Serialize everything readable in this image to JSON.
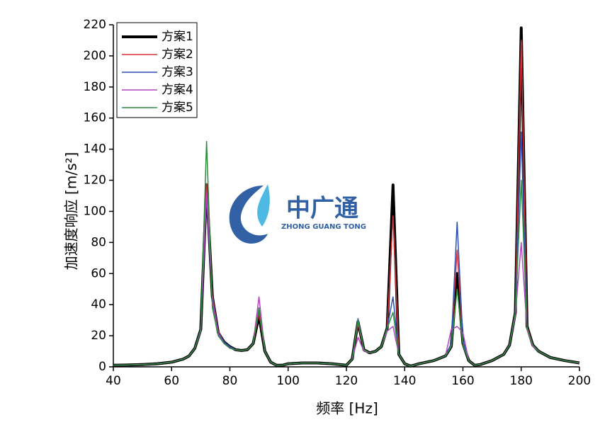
{
  "chart_data": {
    "type": "line",
    "x_label": "频率 [Hz]",
    "y_label": "加速度响应 [m/s²]",
    "watermark": {
      "brand": "中广通",
      "subtitle": "ZHONG GUANG TONG"
    },
    "xlim": [
      40,
      200
    ],
    "xticks": [
      40,
      60,
      80,
      100,
      120,
      140,
      160,
      180,
      200
    ],
    "ylim": [
      0,
      220
    ],
    "yticks": [
      0,
      20,
      40,
      60,
      80,
      100,
      120,
      140,
      160,
      180,
      200,
      220
    ],
    "legend": "upper-left",
    "x": [
      40,
      45,
      50,
      55,
      60,
      64,
      66,
      68,
      70,
      72,
      74,
      76,
      78,
      80,
      82,
      84,
      86,
      88,
      90,
      92,
      94,
      96,
      98,
      100,
      105,
      110,
      115,
      120,
      122,
      124,
      126,
      128,
      130,
      132,
      134,
      136,
      138,
      140,
      142,
      145,
      150,
      154,
      156,
      158,
      160,
      162,
      164,
      166,
      170,
      174,
      176,
      178,
      180,
      182,
      184,
      186,
      190,
      195,
      200
    ],
    "series": [
      {
        "name": "方案1",
        "color": "#000000",
        "width": 4,
        "values": [
          1,
          1.2,
          1.5,
          2,
          3,
          5,
          7,
          12,
          24,
          117,
          45,
          22,
          16,
          13,
          11,
          10.5,
          11,
          15,
          33,
          10,
          3,
          1,
          1,
          2,
          2.5,
          2.5,
          2,
          1,
          5,
          29,
          11,
          9,
          10,
          13,
          25,
          117,
          8,
          2,
          0.5,
          2,
          4,
          7,
          13,
          60,
          15,
          4,
          1,
          1.5,
          4,
          8,
          14,
          35,
          218,
          26,
          14,
          10,
          6,
          4,
          2.5
        ]
      },
      {
        "name": "方案2",
        "color": "#d8323c",
        "width": 1.5,
        "values": [
          1,
          1.2,
          1.5,
          2,
          3,
          5,
          7,
          12,
          24,
          118,
          46,
          23,
          16,
          13,
          11,
          10.5,
          11,
          15,
          35,
          10,
          3,
          1,
          1,
          2,
          2.5,
          2.5,
          2,
          1,
          5,
          28,
          11,
          9,
          10,
          13,
          25,
          97,
          8,
          2,
          0.5,
          2,
          4,
          7,
          14,
          75,
          16,
          4,
          1,
          1.5,
          4,
          8,
          14,
          35,
          210,
          26,
          14,
          10,
          6,
          4,
          2.5
        ]
      },
      {
        "name": "方案3",
        "color": "#2c4fb2",
        "width": 1.5,
        "values": [
          1,
          1.2,
          1.5,
          2,
          3,
          5,
          7,
          12,
          24,
          110,
          44,
          22,
          16,
          13,
          11,
          10.5,
          11,
          15,
          38,
          10,
          3,
          1,
          1,
          2,
          2.5,
          2.5,
          2,
          1,
          5,
          31,
          11,
          9,
          10,
          13,
          25,
          45,
          8,
          2,
          0.5,
          2,
          4,
          7,
          15,
          93,
          17,
          4,
          1,
          1.5,
          4,
          8,
          14,
          35,
          151,
          25,
          14,
          10,
          6,
          4,
          2.5
        ]
      },
      {
        "name": "方案4",
        "color": "#b445c0",
        "width": 1.5,
        "values": [
          1,
          1.2,
          1.5,
          2,
          3,
          5,
          7,
          12,
          23,
          113,
          42,
          21,
          15,
          12,
          11,
          10.5,
          11,
          15,
          45,
          10,
          3,
          1,
          1,
          2,
          2.5,
          2.5,
          2,
          1,
          5,
          19,
          10,
          9,
          10,
          13,
          23,
          26,
          8,
          2,
          0.5,
          2,
          4,
          7,
          24,
          26,
          22,
          4,
          1,
          1.5,
          4,
          8,
          14,
          33,
          80,
          24,
          13,
          10,
          6,
          4,
          2.5
        ]
      },
      {
        "name": "方案5",
        "color": "#2e8c3e",
        "width": 1.5,
        "values": [
          1,
          1.2,
          1.5,
          2,
          3,
          5,
          7,
          12,
          24,
          145,
          38,
          20,
          15,
          12,
          11,
          10.5,
          11,
          15,
          38,
          10,
          3,
          1,
          1,
          2,
          2.5,
          2.5,
          2,
          1,
          5,
          30,
          11,
          9,
          10,
          13,
          25,
          35,
          8,
          2,
          0.5,
          2,
          4,
          7,
          13,
          50,
          14,
          4,
          1,
          1.5,
          4,
          8,
          14,
          35,
          120,
          25,
          14,
          10,
          6,
          4,
          2.5
        ]
      }
    ]
  }
}
